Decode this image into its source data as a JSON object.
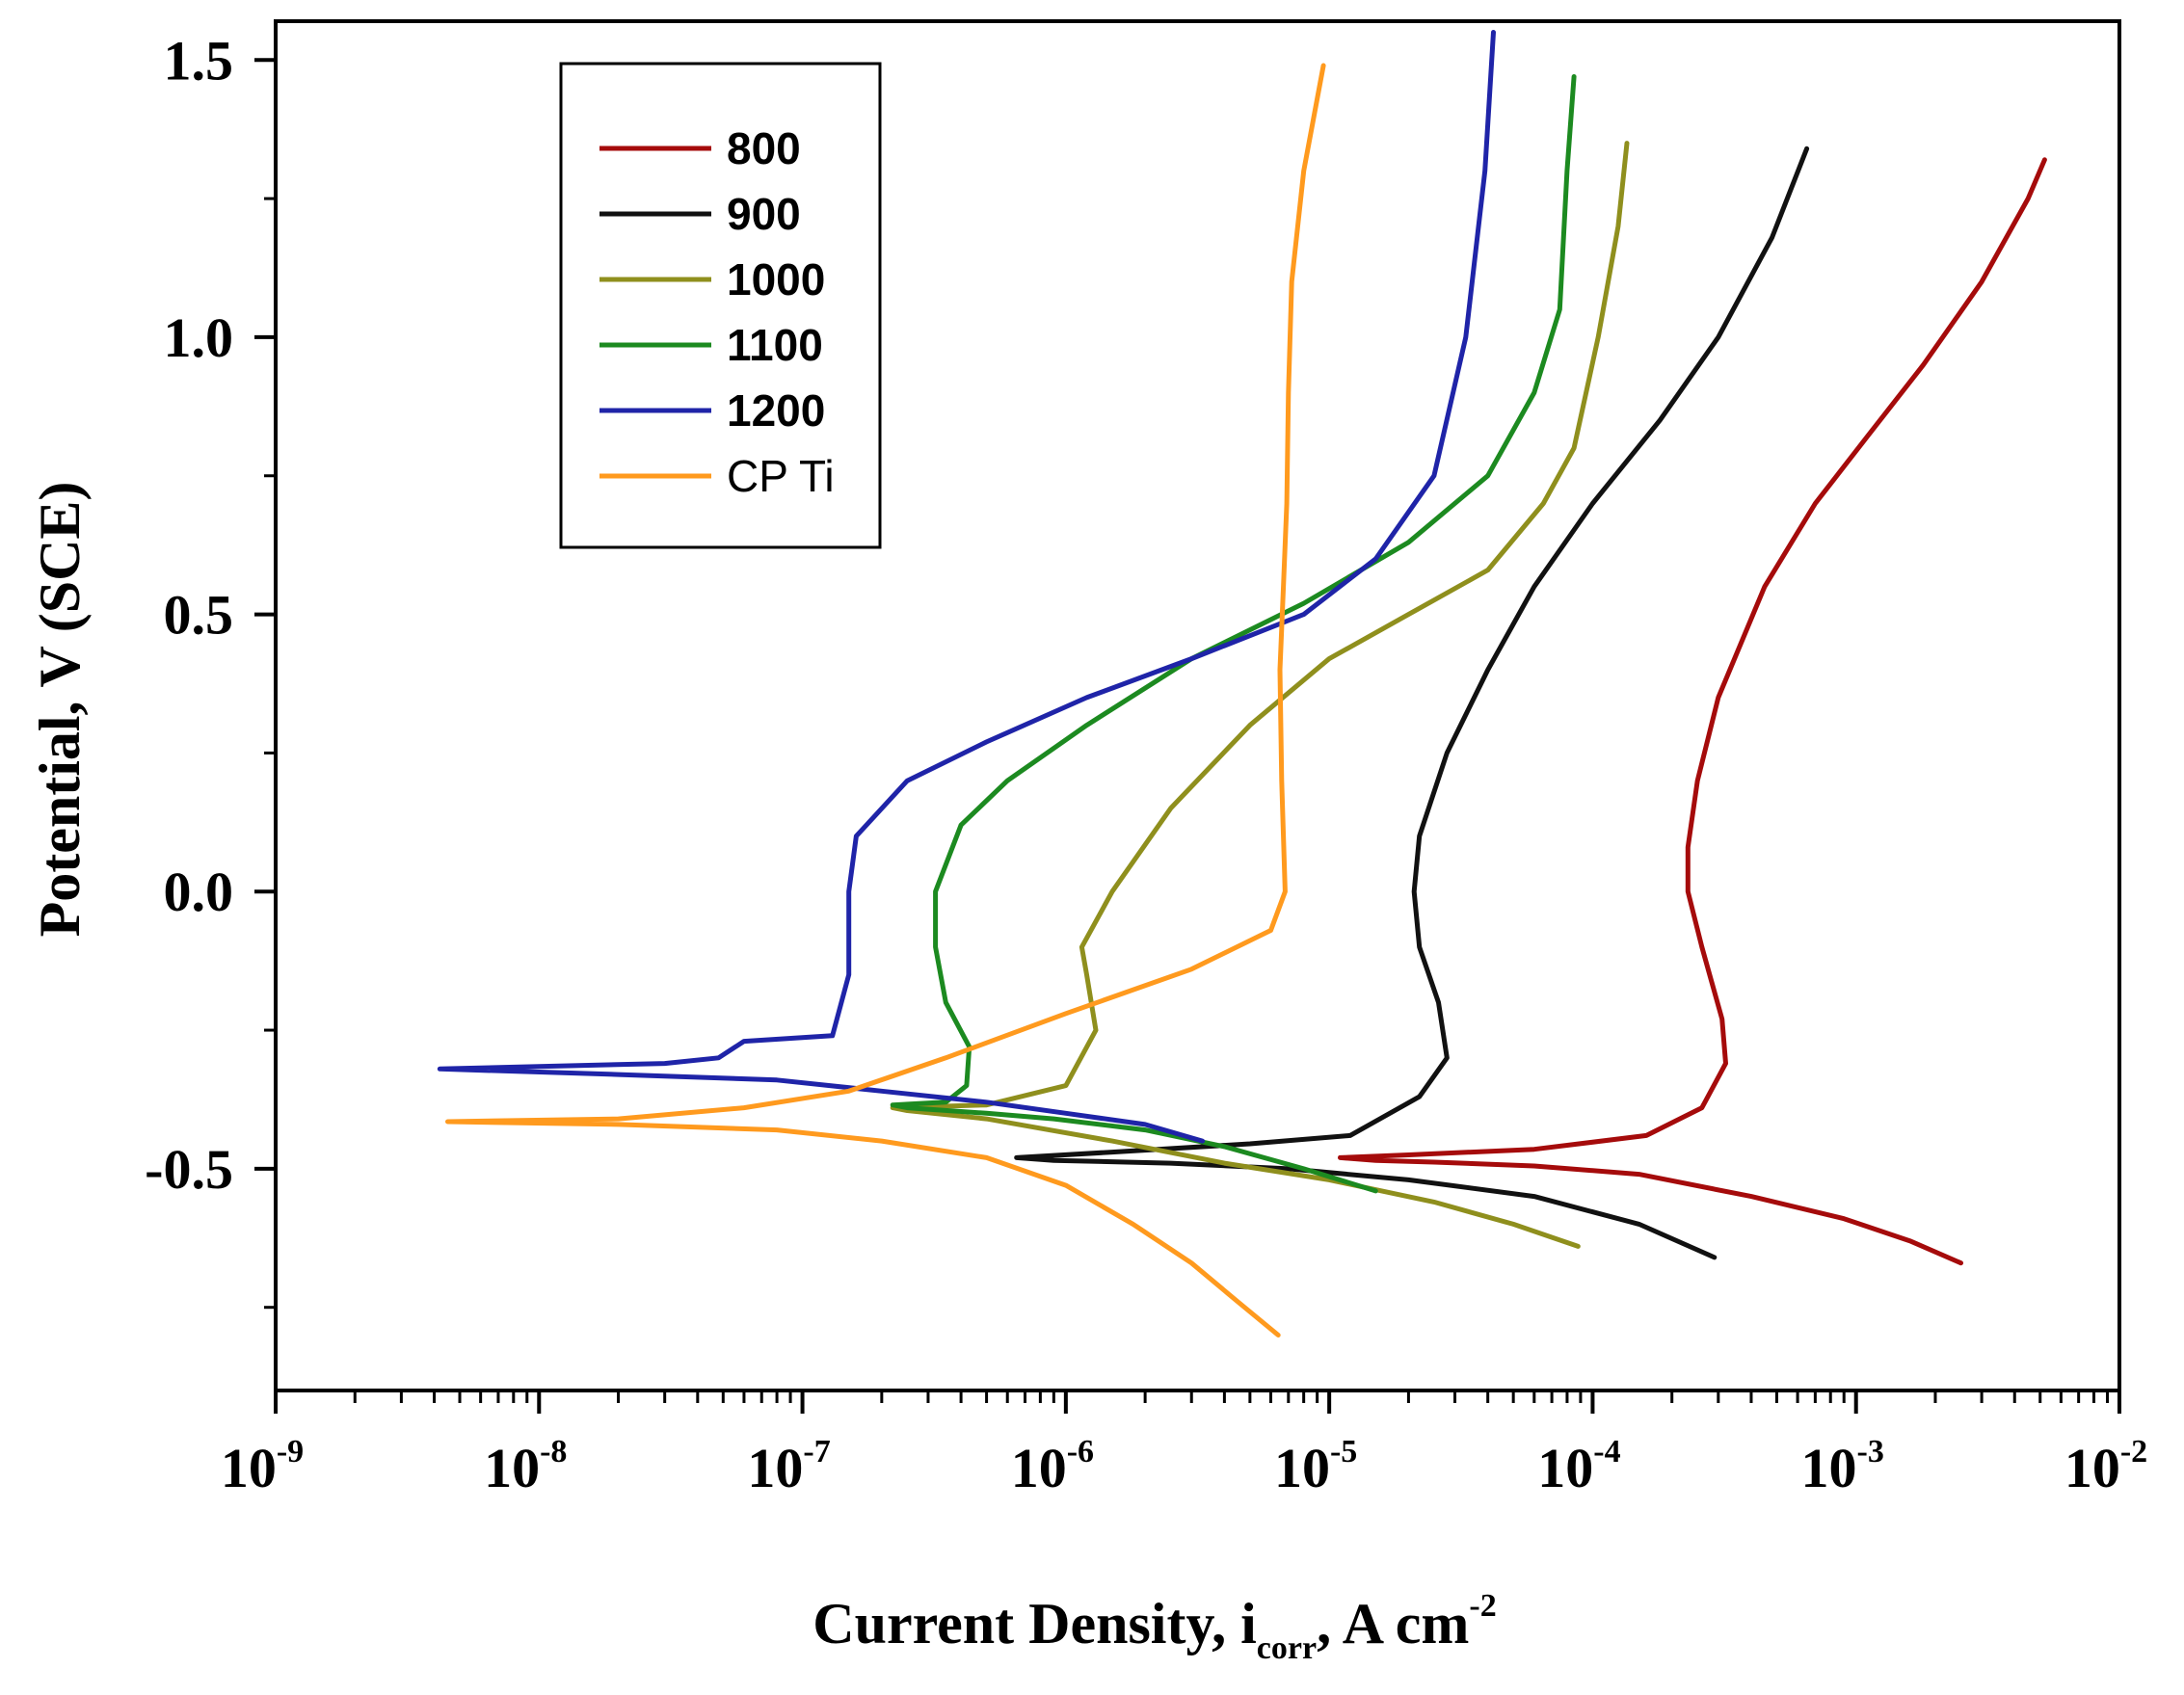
{
  "chart_data": {
    "type": "line",
    "title": "",
    "xlabel": "Current Density, i",
    "xlabel_subscript": "corr",
    "xlabel_suffix": ", A cm",
    "xlabel_superscript": "-2",
    "ylabel": "Potential, V (SCE)",
    "xscale": "log",
    "xlim": [
      1e-09,
      0.01
    ],
    "ylim": [
      -0.9,
      1.57
    ],
    "x_ticks": [
      {
        "base": "10",
        "exp": "-9"
      },
      {
        "base": "10",
        "exp": "-8"
      },
      {
        "base": "10",
        "exp": "-7"
      },
      {
        "base": "10",
        "exp": "-6"
      },
      {
        "base": "10",
        "exp": "-5"
      },
      {
        "base": "10",
        "exp": "-4"
      },
      {
        "base": "10",
        "exp": "-3"
      },
      {
        "base": "10",
        "exp": "-2"
      }
    ],
    "y_ticks": [
      "-0.5",
      "0.0",
      "0.5",
      "1.0",
      "1.5"
    ],
    "y_tick_values": [
      -0.5,
      0.0,
      0.5,
      1.0,
      1.5
    ],
    "grid": false,
    "legend_position": "top-left",
    "series": [
      {
        "name": "800",
        "color": "#a50b0b",
        "bold": true,
        "x": [
          0.0025,
          0.0016,
          0.0009,
          0.0004,
          0.00015,
          6e-05,
          2.5e-05,
          1.5e-05,
          1.1e-05,
          2e-05,
          6e-05,
          0.00016,
          0.00026,
          0.00032,
          0.00031,
          0.00026,
          0.00023,
          0.00023,
          0.00025,
          0.0003,
          0.00045,
          0.0007,
          0.0011,
          0.0018,
          0.003,
          0.0045,
          0.0052
        ],
        "y": [
          -0.67,
          -0.63,
          -0.59,
          -0.55,
          -0.51,
          -0.495,
          -0.488,
          -0.485,
          -0.48,
          -0.475,
          -0.465,
          -0.44,
          -0.39,
          -0.31,
          -0.23,
          -0.1,
          0.0,
          0.08,
          0.2,
          0.35,
          0.55,
          0.7,
          0.82,
          0.95,
          1.1,
          1.25,
          1.32
        ]
      },
      {
        "name": "900",
        "color": "#111111",
        "bold": true,
        "x": [
          0.00029,
          0.00015,
          6e-05,
          2e-05,
          7e-06,
          2.5e-06,
          9e-07,
          6.5e-07,
          1.5e-06,
          5e-06,
          1.2e-05,
          2.2e-05,
          2.8e-05,
          2.6e-05,
          2.2e-05,
          2.1e-05,
          2.2e-05,
          2.8e-05,
          4e-05,
          6e-05,
          0.0001,
          0.00018,
          0.0003,
          0.00048,
          0.00065
        ],
        "y": [
          -0.66,
          -0.6,
          -0.55,
          -0.52,
          -0.5,
          -0.49,
          -0.485,
          -0.48,
          -0.47,
          -0.455,
          -0.44,
          -0.37,
          -0.3,
          -0.2,
          -0.1,
          0.0,
          0.1,
          0.25,
          0.4,
          0.55,
          0.7,
          0.85,
          1.0,
          1.18,
          1.34
        ]
      },
      {
        "name": "1000",
        "color": "#8f8f1d",
        "bold": true,
        "x": [
          8.8e-05,
          5e-05,
          2.5e-05,
          1e-05,
          4e-06,
          1.5e-06,
          5e-07,
          2.5e-07,
          2.2e-07,
          5e-07,
          1e-06,
          1.3e-06,
          1.2e-06,
          1.15e-06,
          1.5e-06,
          2.5e-06,
          5e-06,
          1e-05,
          2e-05,
          4e-05,
          6.5e-05,
          8.5e-05,
          0.000105,
          0.000125,
          0.000135
        ],
        "y": [
          -0.64,
          -0.6,
          -0.56,
          -0.52,
          -0.49,
          -0.45,
          -0.41,
          -0.395,
          -0.39,
          -0.385,
          -0.35,
          -0.25,
          -0.15,
          -0.1,
          0.0,
          0.15,
          0.3,
          0.42,
          0.5,
          0.58,
          0.7,
          0.8,
          1.0,
          1.2,
          1.35
        ]
      },
      {
        "name": "1100",
        "color": "#1c8a20",
        "bold": true,
        "x": [
          1.5e-05,
          8e-06,
          4e-06,
          2e-06,
          9e-07,
          5e-07,
          2.5e-07,
          2.2e-07,
          3.5e-07,
          4.2e-07,
          4.3e-07,
          3.5e-07,
          3.2e-07,
          3.2e-07,
          4e-07,
          6e-07,
          1.2e-06,
          3e-06,
          8e-06,
          2e-05,
          4e-05,
          6e-05,
          7.5e-05,
          8e-05,
          8.5e-05
        ],
        "y": [
          -0.54,
          -0.5,
          -0.46,
          -0.43,
          -0.41,
          -0.4,
          -0.39,
          -0.385,
          -0.38,
          -0.35,
          -0.28,
          -0.2,
          -0.1,
          0.0,
          0.12,
          0.2,
          0.3,
          0.42,
          0.52,
          0.63,
          0.75,
          0.9,
          1.05,
          1.3,
          1.47
        ]
      },
      {
        "name": "1200",
        "color": "#1f24a8",
        "bold": true,
        "x": [
          3.3e-06,
          2e-06,
          1e-06,
          5e-07,
          2e-07,
          8e-08,
          2e-08,
          4.2e-09,
          3e-08,
          4.8e-08,
          6e-08,
          1.3e-07,
          1.5e-07,
          1.5e-07,
          1.6e-07,
          2.5e-07,
          5e-07,
          1.2e-06,
          3e-06,
          8e-06,
          1.5e-05,
          2.5e-05,
          3.3e-05,
          3.9e-05,
          4.2e-05
        ],
        "y": [
          -0.45,
          -0.42,
          -0.4,
          -0.38,
          -0.36,
          -0.34,
          -0.33,
          -0.32,
          -0.31,
          -0.3,
          -0.27,
          -0.26,
          -0.15,
          0.0,
          0.1,
          0.2,
          0.27,
          0.35,
          0.42,
          0.5,
          0.6,
          0.75,
          1.0,
          1.3,
          1.55
        ]
      },
      {
        "name": "CP Ti",
        "color": "#ff9a1e",
        "bold": false,
        "x": [
          6.4e-06,
          4.5e-06,
          3e-06,
          1.8e-06,
          1e-06,
          5e-07,
          2e-07,
          8e-08,
          2e-08,
          4.5e-09,
          2e-08,
          6e-08,
          1.5e-07,
          3.5e-07,
          1e-06,
          3e-06,
          6e-06,
          6.8e-06,
          6.6e-06,
          6.5e-06,
          6.7e-06,
          6.9e-06,
          7e-06,
          7.2e-06,
          8e-06,
          9.5e-06
        ],
        "y": [
          -0.8,
          -0.74,
          -0.67,
          -0.6,
          -0.53,
          -0.48,
          -0.45,
          -0.43,
          -0.42,
          -0.415,
          -0.41,
          -0.39,
          -0.36,
          -0.3,
          -0.22,
          -0.14,
          -0.07,
          0.0,
          0.2,
          0.4,
          0.55,
          0.7,
          0.9,
          1.1,
          1.3,
          1.49
        ]
      }
    ]
  }
}
